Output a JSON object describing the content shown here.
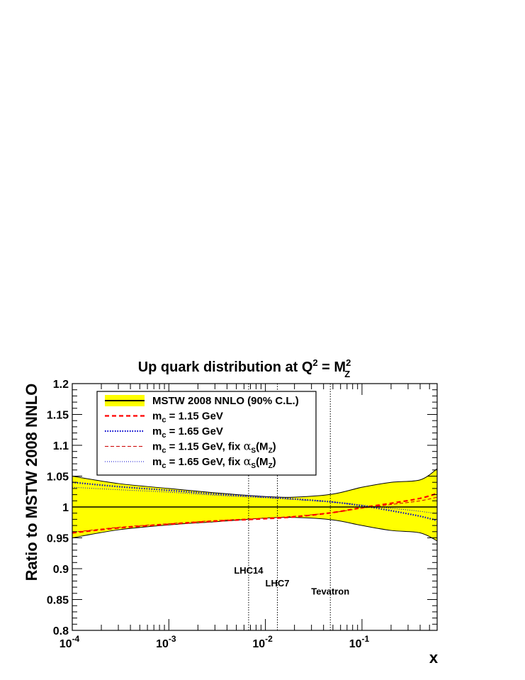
{
  "chart_data": {
    "type": "line",
    "title": {
      "main": "Up quark distribution at Q",
      "sup1": "2",
      "eq": " = M",
      "sup2": "2",
      "sub2": "Z"
    },
    "xlabel": "x",
    "ylabel": "Ratio to MSTW 2008 NNLO",
    "xscale": "log",
    "xlim": [
      0.0001,
      0.6
    ],
    "ylim": [
      0.8,
      1.2
    ],
    "x_ticks": [
      {
        "value": 0.0001,
        "base": "10",
        "exp": "-4"
      },
      {
        "value": 0.001,
        "base": "10",
        "exp": "-3"
      },
      {
        "value": 0.01,
        "base": "10",
        "exp": "-2"
      },
      {
        "value": 0.1,
        "base": "10",
        "exp": "-1"
      }
    ],
    "y_ticks": [
      "0.8",
      "0.85",
      "0.9",
      "0.95",
      "1",
      "1.05",
      "1.1",
      "1.15",
      "1.2"
    ],
    "x_nodes": [
      0.0001,
      0.0003,
      0.001,
      0.003,
      0.01,
      0.02,
      0.05,
      0.1,
      0.2,
      0.4,
      0.6
    ],
    "band": {
      "upper": [
        1.05,
        1.038,
        1.03,
        1.023,
        1.017,
        1.016,
        1.021,
        1.032,
        1.04,
        1.044,
        1.062
      ],
      "lower": [
        0.95,
        0.963,
        0.971,
        0.976,
        0.982,
        0.983,
        0.979,
        0.97,
        0.962,
        0.958,
        0.945
      ],
      "fill": "#ffff00"
    },
    "series": [
      {
        "key": "central",
        "values": [
          1.0,
          1.0,
          1.0,
          1.0,
          1.0,
          1.0,
          1.0,
          1.0,
          1.0,
          1.0,
          1.0
        ],
        "color": "#000000",
        "style": "solid",
        "width": 1.5
      },
      {
        "key": "mc115",
        "values": [
          0.958,
          0.966,
          0.972,
          0.977,
          0.981,
          0.984,
          0.991,
          0.999,
          1.006,
          1.014,
          1.022
        ],
        "color": "#ff0000",
        "style": "dashed",
        "width": 2.2
      },
      {
        "key": "mc165",
        "values": [
          1.04,
          1.033,
          1.027,
          1.021,
          1.016,
          1.013,
          1.008,
          1.002,
          0.994,
          0.985,
          0.978
        ],
        "color": "#0000cc",
        "style": "dotted",
        "width": 2.2
      },
      {
        "key": "mc115fix",
        "values": [
          0.959,
          0.967,
          0.973,
          0.978,
          0.982,
          0.985,
          0.991,
          0.998,
          1.004,
          1.01,
          1.016
        ],
        "color": "#cc0000",
        "style": "dashed",
        "width": 1.0
      },
      {
        "key": "mc165fix",
        "values": [
          1.032,
          1.028,
          1.024,
          1.019,
          1.015,
          1.012,
          1.008,
          1.003,
          0.998,
          0.993,
          0.989
        ],
        "color": "#0000cc",
        "style": "dotted",
        "width": 1.0
      }
    ],
    "vlines": [
      {
        "x": 0.0067,
        "label": "LHC14",
        "label_y": 0.892
      },
      {
        "x": 0.0133,
        "label": "LHC7",
        "label_y": 0.871
      },
      {
        "x": 0.047,
        "label": "Tevatron",
        "label_y": 0.858
      }
    ],
    "legend": {
      "placement": "top-left",
      "entries": [
        {
          "text": "MSTW 2008 NNLO (90% C.L.)",
          "kind": "band",
          "series": "central"
        },
        {
          "mc": "m",
          "mcsub": "c",
          "text": " = 1.15 GeV",
          "kind": "line",
          "series": "mc115"
        },
        {
          "mc": "m",
          "mcsub": "c",
          "text": " = 1.65 GeV",
          "kind": "line",
          "series": "mc165"
        },
        {
          "mc": "m",
          "mcsub": "c",
          "text": " = 1.15 GeV, fix ",
          "alpha": "α",
          "alphasub": "S",
          "tail": "(M",
          "tailsub": "Z",
          "close": ")",
          "kind": "line",
          "series": "mc115fix"
        },
        {
          "mc": "m",
          "mcsub": "c",
          "text": " = 1.65 GeV, fix ",
          "alpha": "α",
          "alphasub": "S",
          "tail": "(M",
          "tailsub": "Z",
          "close": ")",
          "kind": "line",
          "series": "mc165fix"
        }
      ]
    }
  }
}
